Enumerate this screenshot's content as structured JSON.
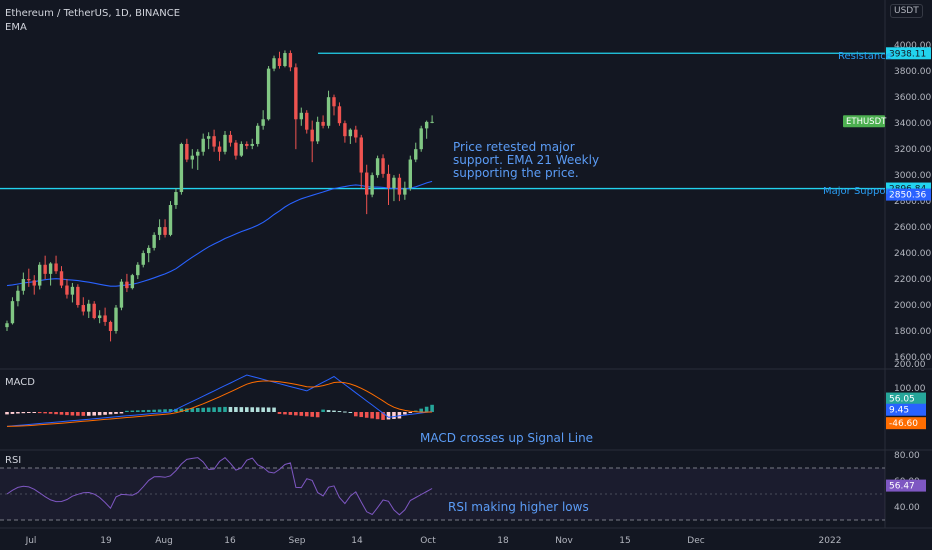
{
  "header": {
    "symbol_line": "Ethereum / TetherUS, 1D, BINANCE",
    "indicator": "EMA",
    "currency_button": "USDT"
  },
  "colors": {
    "background": "#131722",
    "up": "#81c784",
    "down": "#ef5350",
    "ema": "#2962ff",
    "level_line": "#22d3ee",
    "annotation": "#5b9cf6",
    "macd": "#2962ff",
    "signal": "#ff6d00",
    "rsi": "#7e57c2"
  },
  "annotations": {
    "resistance": "Resistance",
    "support": "Major Support",
    "note_line1": "Price retested major",
    "note_line2": "support. EMA 21 Weekly",
    "note_line3": "supporting the price.",
    "macd_note": "MACD crosses up Signal Line",
    "rsi_note": "RSI making higher lows"
  },
  "panes": {
    "macd_title": "MACD",
    "rsi_title": "RSI"
  },
  "chart_data": [
    {
      "type": "candlestick",
      "title": "Ethereum / TetherUS, 1D, BINANCE",
      "y_ticks": [
        1600,
        1800,
        2000,
        2200,
        2400,
        2600,
        2800,
        3000,
        3200,
        3400,
        3600,
        3800,
        4000
      ],
      "ylim": [
        1480,
        4080
      ],
      "x_ticks": [
        "Jul",
        "19",
        "Aug",
        "16",
        "Sep",
        "14",
        "Oct",
        "18",
        "Nov",
        "15",
        "Dec",
        "2022"
      ],
      "levels": [
        {
          "label": "Resistance",
          "value": 3938.11,
          "tag": "3938.11"
        },
        {
          "label": "Major Support",
          "value": 2896.84,
          "tag": "2896.84"
        }
      ],
      "price_tags": [
        {
          "label": "ETHUSDT",
          "value": 3415
        },
        {
          "label": "EMA",
          "value": 2850.36,
          "tag": "2850.36"
        }
      ],
      "ohlc": [
        [
          1830,
          1880,
          1800,
          1860
        ],
        [
          1860,
          2060,
          1850,
          2030
        ],
        [
          2030,
          2150,
          1990,
          2110
        ],
        [
          2110,
          2250,
          2080,
          2200
        ],
        [
          2200,
          2280,
          2140,
          2190
        ],
        [
          2190,
          2230,
          2080,
          2150
        ],
        [
          2150,
          2330,
          2120,
          2310
        ],
        [
          2310,
          2380,
          2200,
          2240
        ],
        [
          2240,
          2330,
          2150,
          2320
        ],
        [
          2320,
          2380,
          2240,
          2260
        ],
        [
          2260,
          2300,
          2130,
          2150
        ],
        [
          2150,
          2200,
          2050,
          2080
        ],
        [
          2080,
          2170,
          2020,
          2140
        ],
        [
          2140,
          2160,
          1980,
          2000
        ],
        [
          2000,
          2060,
          1920,
          1950
        ],
        [
          1950,
          2040,
          1900,
          2010
        ],
        [
          2010,
          2030,
          1890,
          1900
        ],
        [
          1900,
          1960,
          1860,
          1920
        ],
        [
          1920,
          1980,
          1840,
          1870
        ],
        [
          1870,
          1880,
          1720,
          1800
        ],
        [
          1800,
          2000,
          1780,
          1980
        ],
        [
          1980,
          2200,
          1960,
          2180
        ],
        [
          2180,
          2240,
          2100,
          2130
        ],
        [
          2130,
          2240,
          2120,
          2230
        ],
        [
          2230,
          2330,
          2200,
          2310
        ],
        [
          2310,
          2420,
          2290,
          2400
        ],
        [
          2400,
          2460,
          2330,
          2440
        ],
        [
          2440,
          2560,
          2420,
          2540
        ],
        [
          2540,
          2660,
          2500,
          2600
        ],
        [
          2600,
          2660,
          2520,
          2540
        ],
        [
          2540,
          2800,
          2530,
          2770
        ],
        [
          2770,
          2900,
          2740,
          2870
        ],
        [
          2870,
          3250,
          2850,
          3240
        ],
        [
          3240,
          3280,
          3100,
          3120
        ],
        [
          3120,
          3200,
          3050,
          3150
        ],
        [
          3150,
          3200,
          3040,
          3180
        ],
        [
          3180,
          3320,
          3150,
          3280
        ],
        [
          3280,
          3330,
          3200,
          3300
        ],
        [
          3300,
          3350,
          3180,
          3220
        ],
        [
          3220,
          3260,
          3110,
          3180
        ],
        [
          3180,
          3340,
          3160,
          3310
        ],
        [
          3310,
          3340,
          3220,
          3250
        ],
        [
          3250,
          3270,
          3120,
          3150
        ],
        [
          3150,
          3260,
          3140,
          3240
        ],
        [
          3240,
          3260,
          3200,
          3225
        ],
        [
          3225,
          3280,
          3200,
          3240
        ],
        [
          3240,
          3400,
          3220,
          3380
        ],
        [
          3380,
          3500,
          3350,
          3430
        ],
        [
          3430,
          3840,
          3420,
          3820
        ],
        [
          3820,
          3920,
          3800,
          3900
        ],
        [
          3900,
          3950,
          3820,
          3840
        ],
        [
          3840,
          3960,
          3830,
          3940
        ],
        [
          3940,
          3960,
          3800,
          3830
        ],
        [
          3830,
          3860,
          3200,
          3430
        ],
        [
          3430,
          3520,
          3380,
          3480
        ],
        [
          3480,
          3500,
          3320,
          3350
        ],
        [
          3350,
          3420,
          3100,
          3260
        ],
        [
          3260,
          3450,
          3240,
          3410
        ],
        [
          3410,
          3460,
          3360,
          3380
        ],
        [
          3380,
          3650,
          3360,
          3600
        ],
        [
          3600,
          3620,
          3460,
          3530
        ],
        [
          3530,
          3560,
          3380,
          3400
        ],
        [
          3400,
          3420,
          3250,
          3300
        ],
        [
          3300,
          3360,
          3240,
          3350
        ],
        [
          3350,
          3380,
          3250,
          3290
        ],
        [
          3290,
          3310,
          2900,
          3020
        ],
        [
          3020,
          3080,
          2700,
          2850
        ],
        [
          2850,
          3020,
          2830,
          3000
        ],
        [
          3000,
          3150,
          2980,
          3130
        ],
        [
          3130,
          3160,
          2980,
          3010
        ],
        [
          3010,
          3080,
          2770,
          2900
        ],
        [
          2900,
          3000,
          2800,
          2980
        ],
        [
          2980,
          3010,
          2800,
          2850
        ],
        [
          2850,
          2950,
          2810,
          2900
        ],
        [
          2900,
          3150,
          2880,
          3120
        ],
        [
          3120,
          3250,
          3100,
          3200
        ],
        [
          3200,
          3380,
          3180,
          3360
        ],
        [
          3360,
          3420,
          3280,
          3410
        ],
        [
          3410,
          3460,
          3400,
          3410
        ]
      ],
      "ema": [
        2150,
        2155,
        2162,
        2170,
        2175,
        2180,
        2188,
        2195,
        2200,
        2203,
        2200,
        2195,
        2192,
        2188,
        2182,
        2176,
        2168,
        2160,
        2152,
        2145,
        2145,
        2150,
        2155,
        2160,
        2170,
        2182,
        2195,
        2210,
        2225,
        2240,
        2258,
        2280,
        2310,
        2340,
        2368,
        2395,
        2422,
        2448,
        2470,
        2490,
        2512,
        2530,
        2548,
        2565,
        2580,
        2596,
        2615,
        2637,
        2665,
        2697,
        2725,
        2755,
        2780,
        2800,
        2818,
        2832,
        2845,
        2858,
        2870,
        2884,
        2896,
        2905,
        2912,
        2920,
        2925,
        2920,
        2912,
        2908,
        2908,
        2906,
        2900,
        2898,
        2895,
        2895,
        2900,
        2910,
        2925,
        2940,
        2952
      ]
    },
    {
      "type": "bar",
      "title": "MACD",
      "y_ticks": [
        200,
        100
      ],
      "price_tags": [
        56.05,
        9.45,
        -46.6
      ],
      "price_tag_labels": [
        "56.05",
        "9.45",
        "-46.60"
      ]
    },
    {
      "type": "line",
      "title": "RSI",
      "y_ticks": [
        80,
        60,
        40
      ],
      "bands": [
        70,
        30
      ],
      "price_tag": 56.47,
      "price_tag_label": "56.47"
    }
  ]
}
